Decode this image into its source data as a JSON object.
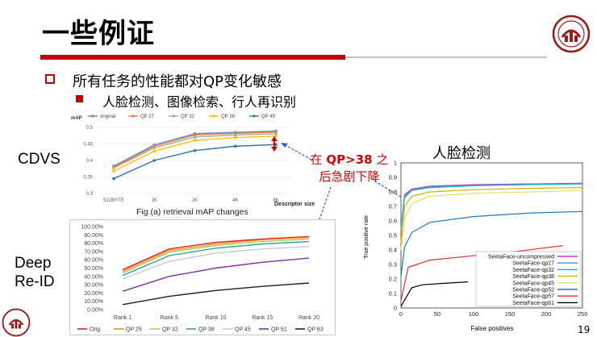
{
  "slide": {
    "title": "一些例证",
    "bullet1": "所有任务的性能都对QP变化敏感",
    "bullet2": "人脸检测、图像检索、行人再识别",
    "label_cdvs": "CDVS",
    "label_deep": "Deep",
    "label_reid": "Re-ID",
    "annotation_prefix": "在 ",
    "annotation_bold": "QP>38",
    "annotation_suffix": " 之",
    "annotation_line2": "后急剧下降",
    "face_title": "人脸检测",
    "page_number": "19",
    "colors": {
      "accent": "#c0000d",
      "annotation": "#d20000",
      "logo": "#9b1c1c"
    }
  },
  "icons": {
    "logo_top": "university-seal-icon",
    "logo_bottom": "university-seal-icon"
  },
  "chart_data": [
    {
      "type": "line",
      "title": "Fig.(a) retrieval mAP changes",
      "ylabel": "mAP",
      "xlabel": "Descriptor size",
      "categories": [
        "512BYTE",
        "1K",
        "2K",
        "4K",
        "8K"
      ],
      "ylim": [
        0.3,
        0.5
      ],
      "yticks": [
        "0.5",
        "0.45",
        "0.4",
        "0.35",
        "0.3"
      ],
      "legend": "top",
      "series": [
        {
          "name": "original",
          "color": "#5b8fd0",
          "values": [
            0.383,
            0.447,
            0.481,
            0.485,
            0.489
          ]
        },
        {
          "name": "QP 27",
          "color": "#ed7d31",
          "values": [
            0.38,
            0.443,
            0.477,
            0.482,
            0.486
          ]
        },
        {
          "name": "QP 32",
          "color": "#a5a5a5",
          "values": [
            0.377,
            0.438,
            0.471,
            0.477,
            0.481
          ]
        },
        {
          "name": "QP 38",
          "color": "#ffc000",
          "values": [
            0.368,
            0.428,
            0.461,
            0.469,
            0.474
          ]
        },
        {
          "name": "QP 45",
          "color": "#2e75b6",
          "values": [
            0.345,
            0.4,
            0.43,
            0.443,
            0.448
          ]
        }
      ]
    },
    {
      "type": "line",
      "categories": [
        "Rank 1",
        "Rank 5",
        "Rank 10",
        "Rank 15",
        "Rank 20"
      ],
      "ylim": [
        0,
        100
      ],
      "yticks": [
        "100.00%",
        "90.00%",
        "80.00%",
        "70.00%",
        "60.00%",
        "50.00%",
        "40.00%",
        "30.00%",
        "20.00%",
        "10.00%",
        "0.00%"
      ],
      "legend": "bottom",
      "series": [
        {
          "name": "Orig",
          "color": "#e02020",
          "values": [
            48,
            73,
            81,
            85,
            88
          ]
        },
        {
          "name": "QP 25",
          "color": "#f08a24",
          "values": [
            46,
            71,
            79,
            84,
            87
          ]
        },
        {
          "name": "QP 32",
          "color": "#a8d050",
          "values": [
            44,
            69,
            77,
            82,
            85
          ]
        },
        {
          "name": "QP 38",
          "color": "#2ca0a8",
          "values": [
            41,
            65,
            74,
            79,
            82
          ]
        },
        {
          "name": "QP 45",
          "color": "#c8c8c8",
          "values": [
            37,
            58,
            68,
            73,
            76
          ]
        },
        {
          "name": "QP 51",
          "color": "#8030a0",
          "values": [
            22,
            40,
            50,
            57,
            62
          ]
        },
        {
          "name": "QP 63",
          "color": "#202020",
          "values": [
            6,
            16,
            23,
            28,
            32
          ]
        }
      ]
    },
    {
      "type": "line",
      "xlabel": "False positives",
      "ylabel": "True positive rate",
      "xlim": [
        0,
        250
      ],
      "ylim": [
        0,
        1
      ],
      "xticks": [
        "0",
        "50",
        "100",
        "150",
        "200",
        "250"
      ],
      "yticks": [
        "0",
        "0.1",
        "0.2",
        "0.3",
        "0.4",
        "0.5",
        "0.6",
        "0.7",
        "0.8",
        "0.9",
        "1"
      ],
      "legend": "bottom-right",
      "series": [
        {
          "name": "SeetaFace-uncompressed",
          "color": "#e02fd6",
          "points": [
            [
              0,
              0.55
            ],
            [
              5,
              0.78
            ],
            [
              15,
              0.82
            ],
            [
              40,
              0.84
            ],
            [
              100,
              0.85
            ],
            [
              180,
              0.855
            ],
            [
              250,
              0.86
            ]
          ]
        },
        {
          "name": "SeetaFace-qp27",
          "color": "#2ca4c8",
          "points": [
            [
              0,
              0.55
            ],
            [
              5,
              0.77
            ],
            [
              15,
              0.815
            ],
            [
              40,
              0.835
            ],
            [
              100,
              0.845
            ],
            [
              180,
              0.852
            ],
            [
              250,
              0.858
            ]
          ]
        },
        {
          "name": "SeetaFace-qp32",
          "color": "#20b0b0",
          "points": [
            [
              0,
              0.54
            ],
            [
              5,
              0.76
            ],
            [
              15,
              0.81
            ],
            [
              40,
              0.83
            ],
            [
              100,
              0.842
            ],
            [
              180,
              0.85
            ],
            [
              250,
              0.855
            ]
          ]
        },
        {
          "name": "SeetaFace-qp38",
          "color": "#d4b000",
          "points": [
            [
              0,
              0.45
            ],
            [
              5,
              0.7
            ],
            [
              15,
              0.77
            ],
            [
              40,
              0.8
            ],
            [
              100,
              0.815
            ],
            [
              180,
              0.825
            ],
            [
              250,
              0.83
            ]
          ]
        },
        {
          "name": "SeetaFace-qp45",
          "color": "#e8e060",
          "points": [
            [
              0,
              0.4
            ],
            [
              5,
              0.62
            ],
            [
              15,
              0.72
            ],
            [
              40,
              0.77
            ],
            [
              100,
              0.79
            ],
            [
              180,
              0.8
            ],
            [
              250,
              0.81
            ]
          ]
        },
        {
          "name": "SeetaFace-qp52",
          "color": "#1f77c0",
          "points": [
            [
              0,
              0.22
            ],
            [
              5,
              0.42
            ],
            [
              15,
              0.52
            ],
            [
              40,
              0.59
            ],
            [
              100,
              0.63
            ],
            [
              180,
              0.655
            ],
            [
              250,
              0.665
            ]
          ]
        },
        {
          "name": "SeetaFace-qp57",
          "color": "#e03030",
          "points": [
            [
              0,
              0.05
            ],
            [
              10,
              0.28
            ],
            [
              40,
              0.33
            ],
            [
              100,
              0.36
            ],
            [
              160,
              0.39
            ],
            [
              223,
              0.43
            ]
          ]
        },
        {
          "name": "SeetaFace-qp61",
          "color": "#000000",
          "points": [
            [
              0,
              0.01
            ],
            [
              8,
              0.08
            ],
            [
              15,
              0.14
            ],
            [
              30,
              0.16
            ],
            [
              60,
              0.17
            ],
            [
              92,
              0.18
            ]
          ]
        }
      ]
    }
  ]
}
